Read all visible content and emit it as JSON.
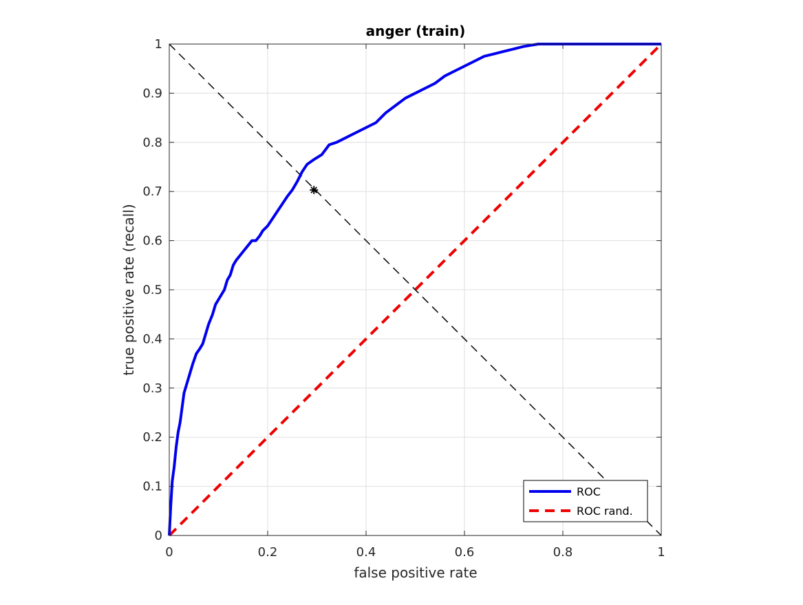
{
  "chart_data": {
    "type": "line",
    "title": "anger (train)",
    "xlabel": "false positive rate",
    "ylabel": "true positive rate (recall)",
    "xlim": [
      0,
      1
    ],
    "ylim": [
      0,
      1
    ],
    "grid": true,
    "legend_position": "bottom-right",
    "x_ticks": [
      "0",
      "0.2",
      "0.4",
      "0.6",
      "0.8",
      "1"
    ],
    "y_ticks": [
      "0",
      "0.1",
      "0.2",
      "0.3",
      "0.4",
      "0.5",
      "0.6",
      "0.7",
      "0.8",
      "0.9",
      "1"
    ],
    "series": [
      {
        "name": "ROC",
        "color": "#0000ee",
        "style": "solid",
        "x": [
          0,
          0.003,
          0.006,
          0.01,
          0.014,
          0.018,
          0.022,
          0.026,
          0.03,
          0.036,
          0.042,
          0.048,
          0.055,
          0.062,
          0.068,
          0.074,
          0.08,
          0.088,
          0.094,
          0.1,
          0.106,
          0.112,
          0.118,
          0.124,
          0.13,
          0.136,
          0.144,
          0.152,
          0.16,
          0.168,
          0.176,
          0.184,
          0.19,
          0.2,
          0.21,
          0.22,
          0.23,
          0.24,
          0.25,
          0.26,
          0.27,
          0.28,
          0.294,
          0.31,
          0.325,
          0.34,
          0.36,
          0.38,
          0.4,
          0.42,
          0.44,
          0.46,
          0.48,
          0.5,
          0.52,
          0.54,
          0.56,
          0.58,
          0.6,
          0.62,
          0.64,
          0.66,
          0.68,
          0.7,
          0.72,
          0.75,
          0.8,
          0.85,
          0.9,
          0.95,
          1.0
        ],
        "y": [
          0,
          0.06,
          0.11,
          0.14,
          0.18,
          0.21,
          0.23,
          0.26,
          0.29,
          0.31,
          0.33,
          0.35,
          0.37,
          0.38,
          0.39,
          0.41,
          0.43,
          0.45,
          0.47,
          0.48,
          0.49,
          0.5,
          0.52,
          0.53,
          0.55,
          0.56,
          0.57,
          0.58,
          0.59,
          0.6,
          0.6,
          0.61,
          0.62,
          0.63,
          0.645,
          0.66,
          0.675,
          0.69,
          0.703,
          0.72,
          0.74,
          0.755,
          0.765,
          0.775,
          0.795,
          0.8,
          0.81,
          0.82,
          0.83,
          0.84,
          0.86,
          0.875,
          0.89,
          0.9,
          0.91,
          0.92,
          0.935,
          0.945,
          0.955,
          0.965,
          0.975,
          0.98,
          0.985,
          0.99,
          0.995,
          1.0,
          1.0,
          1.0,
          1.0,
          1.0,
          1.0
        ]
      },
      {
        "name": "ROC rand.",
        "color": "#ee0000",
        "style": "dashed",
        "x": [
          0,
          1
        ],
        "y": [
          0,
          1
        ]
      }
    ],
    "reference_line": {
      "color": "#000000",
      "style": "dashed",
      "x": [
        0,
        1
      ],
      "y": [
        1,
        0
      ]
    },
    "marker": {
      "symbol": "*",
      "color": "#000000",
      "x": 0.294,
      "y": 0.703
    }
  }
}
